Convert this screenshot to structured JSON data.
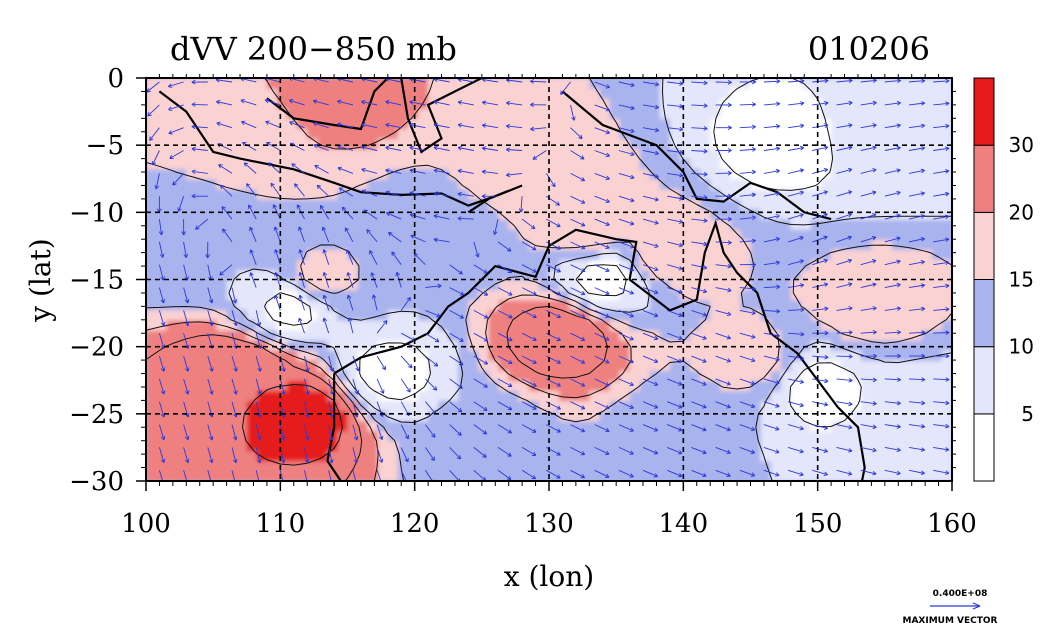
{
  "title_left": "dVV 200−850 mb",
  "title_right": "010206",
  "chart_data": {
    "type": "heatmap",
    "xlabel": "x (lon)",
    "ylabel": "y (lat)",
    "xlim": [
      100,
      160
    ],
    "ylim": [
      -30,
      0
    ],
    "xticks": [
      100,
      110,
      120,
      130,
      140,
      150,
      160
    ],
    "yticks": [
      0,
      -5,
      -10,
      -15,
      -20,
      -25,
      -30
    ],
    "xtick_labels": [
      "100",
      "110",
      "120",
      "130",
      "140",
      "150",
      "160"
    ],
    "ytick_labels": [
      "0",
      "−5",
      "−10",
      "−15",
      "−20",
      "−25",
      "−30"
    ],
    "grid": true,
    "colorbar": {
      "levels": [
        0,
        5,
        10,
        15,
        20,
        30,
        35
      ],
      "labels": [
        "5",
        "10",
        "15",
        "20",
        "30"
      ],
      "label_values": [
        5,
        10,
        15,
        20,
        30
      ],
      "colors": [
        "#ffffff",
        "#e4e6fb",
        "#a9b3ee",
        "#fbd2d2",
        "#ee8080",
        "#e61a1a"
      ]
    },
    "vector_legend": {
      "magnitude_label": "0.400E+08",
      "caption": "MAXIMUM VECTOR"
    },
    "field_samples": [
      {
        "lon": 112,
        "lat": -25,
        "value": 32
      },
      {
        "lon": 107,
        "lat": -22,
        "value": 30
      },
      {
        "lon": 131,
        "lat": -19,
        "value": 28
      },
      {
        "lon": 133,
        "lat": -11,
        "value": 18
      },
      {
        "lon": 139,
        "lat": -13,
        "value": 17
      },
      {
        "lon": 145,
        "lat": -21,
        "value": 16
      },
      {
        "lon": 154,
        "lat": -17,
        "value": 17
      },
      {
        "lon": 107,
        "lat": -4,
        "value": 18
      },
      {
        "lon": 114,
        "lat": -1,
        "value": 22
      },
      {
        "lon": 128,
        "lat": -7,
        "value": 17
      },
      {
        "lon": 113,
        "lat": -15,
        "value": 16
      },
      {
        "lon": 122,
        "lat": -12,
        "value": 11
      },
      {
        "lon": 111,
        "lat": -17,
        "value": 4
      },
      {
        "lon": 134,
        "lat": -15,
        "value": 4
      },
      {
        "lon": 118,
        "lat": -22,
        "value": 4
      },
      {
        "lon": 150,
        "lat": -23,
        "value": 4
      },
      {
        "lon": 147,
        "lat": -5,
        "value": 4
      },
      {
        "lon": 155,
        "lat": -4,
        "value": 6
      },
      {
        "lon": 158,
        "lat": -25,
        "value": 7
      },
      {
        "lon": 103,
        "lat": -12,
        "value": 11
      },
      {
        "lon": 140,
        "lat": -27,
        "value": 11
      },
      {
        "lon": 125,
        "lat": -27,
        "value": 12
      }
    ],
    "wind_field": [
      {
        "lon": 105,
        "lat": -20,
        "u": 0.3,
        "v": -1
      },
      {
        "lon": 112,
        "lat": -27,
        "u": 0.2,
        "v": -1
      },
      {
        "lon": 130,
        "lat": -20,
        "u": 1,
        "v": -0.5
      },
      {
        "lon": 140,
        "lat": -22,
        "u": 1,
        "v": -0.4
      },
      {
        "lon": 120,
        "lat": -5,
        "u": -1,
        "v": 0.2
      },
      {
        "lon": 150,
        "lat": -12,
        "u": 0.8,
        "v": 0.3
      },
      {
        "lon": 112,
        "lat": -15,
        "u": -0.3,
        "v": 1
      }
    ]
  }
}
